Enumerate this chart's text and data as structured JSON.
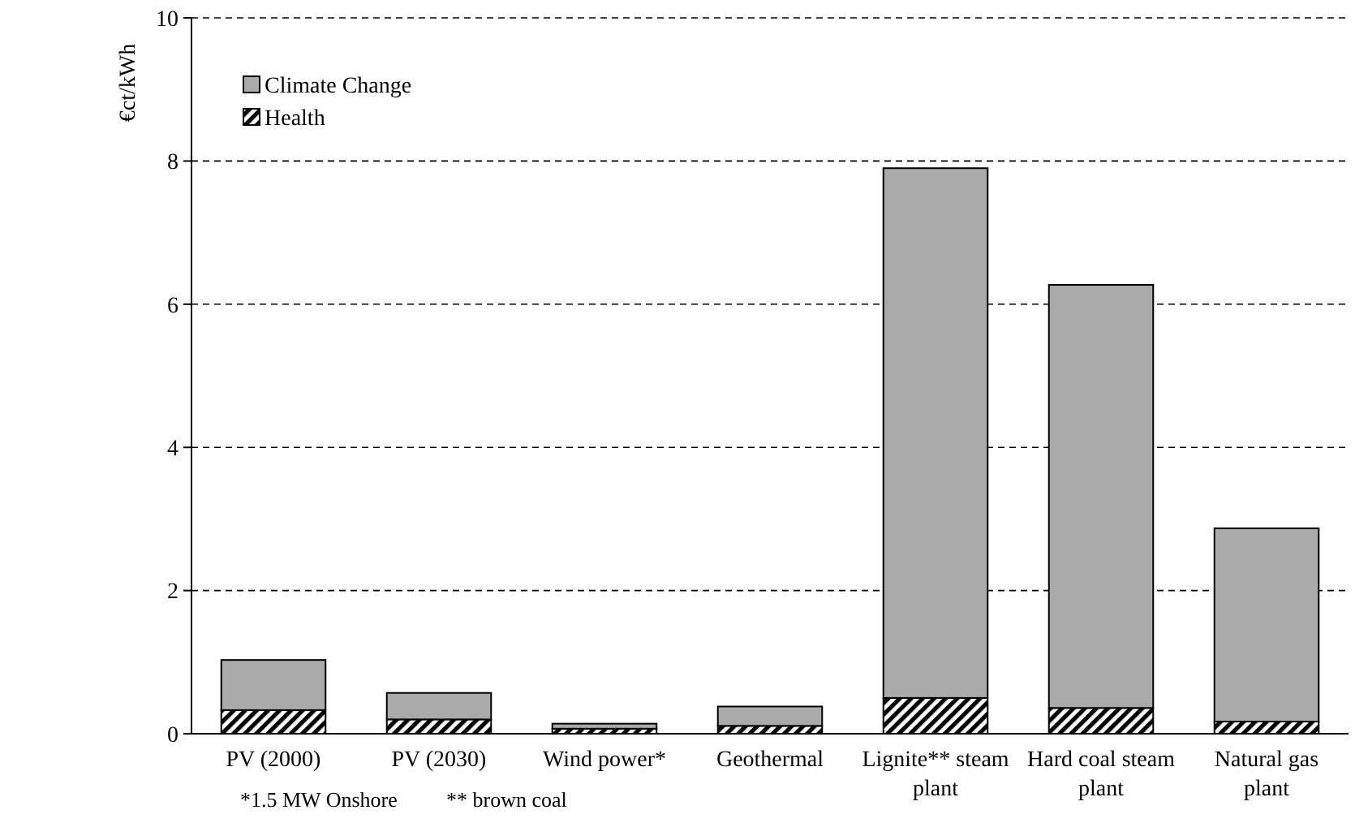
{
  "chart_data": {
    "type": "bar",
    "stacked": true,
    "ylabel": "€ct/kWh",
    "categories": [
      "PV (2000)",
      "PV (2030)",
      "Wind power*",
      "Geothermal",
      "Lignite** steam plant",
      "Hard coal steam plant",
      "Natural gas plant"
    ],
    "series": [
      {
        "name": "Health",
        "color": "#000000",
        "values": [
          0.33,
          0.2,
          0.07,
          0.11,
          0.5,
          0.36,
          0.17
        ]
      },
      {
        "name": "Climate Change",
        "color": "#aaaaaa",
        "values": [
          0.7,
          0.37,
          0.07,
          0.27,
          7.4,
          5.91,
          2.7
        ]
      }
    ],
    "ylim": [
      0,
      10
    ],
    "yticks": [
      0,
      2,
      4,
      6,
      8,
      10
    ],
    "grid": "y",
    "legend": "top left",
    "annotations": [
      "*1.5 MW Onshore",
      "** brown coal"
    ]
  }
}
